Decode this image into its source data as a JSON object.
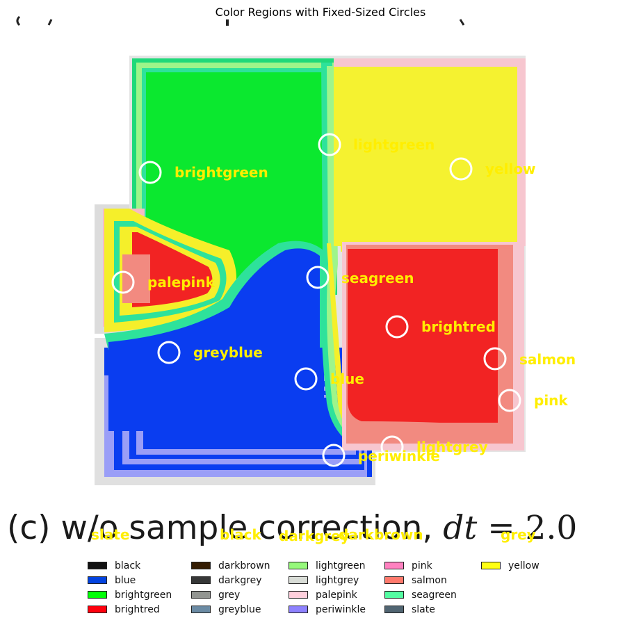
{
  "title": "Color Regions with Fixed-Sized Circles",
  "caption": {
    "prefix": "(c) w/o sample correction, ",
    "var": "dt",
    "equals": " = 2.0"
  },
  "region_labels": [
    {
      "text": "brightgreen"
    },
    {
      "text": "lightgreen"
    },
    {
      "text": "yellow"
    },
    {
      "text": "palepink"
    },
    {
      "text": "seagreen"
    },
    {
      "text": "brightred"
    },
    {
      "text": "greyblue"
    },
    {
      "text": "salmon"
    },
    {
      "text": "blue"
    },
    {
      "text": "pink"
    },
    {
      "text": "lightgrey"
    },
    {
      "text": "periwinkle"
    }
  ],
  "caption_labels": [
    {
      "text": "slate"
    },
    {
      "text": "black"
    },
    {
      "text": "darkgrey"
    },
    {
      "text": "darkbrown"
    },
    {
      "text": "grey"
    }
  ],
  "legend": [
    {
      "label": "black",
      "color": "#111111"
    },
    {
      "label": "blue",
      "color": "#0343df"
    },
    {
      "label": "brightgreen",
      "color": "#01ff07"
    },
    {
      "label": "brightred",
      "color": "#ff000d"
    },
    {
      "label": "darkbrown",
      "color": "#341c02"
    },
    {
      "label": "darkgrey",
      "color": "#363737"
    },
    {
      "label": "grey",
      "color": "#929591"
    },
    {
      "label": "greyblue",
      "color": "#6b8ba4"
    },
    {
      "label": "lightgreen",
      "color": "#96f97b"
    },
    {
      "label": "lightgrey",
      "color": "#d8dcd6"
    },
    {
      "label": "palepink",
      "color": "#ffcfdc"
    },
    {
      "label": "periwinkle",
      "color": "#8e82fe"
    },
    {
      "label": "pink",
      "color": "#ff81c0"
    },
    {
      "label": "salmon",
      "color": "#ff796c"
    },
    {
      "label": "seagreen",
      "color": "#53fca1"
    },
    {
      "label": "slate",
      "color": "#516572"
    },
    {
      "label": "yellow",
      "color": "#ffff14"
    }
  ]
}
